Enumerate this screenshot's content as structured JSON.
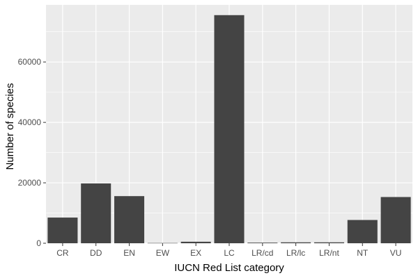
{
  "chart_data": {
    "type": "bar",
    "title": "",
    "xlabel": "IUCN Red List category",
    "ylabel": "Number of species",
    "categories": [
      "CR",
      "DD",
      "EN",
      "EW",
      "EX",
      "LC",
      "LR/cd",
      "LR/lc",
      "LR/nt",
      "NT",
      "VU"
    ],
    "values": [
      8500,
      19800,
      15600,
      80,
      500,
      75500,
      200,
      300,
      300,
      7700,
      15300
    ],
    "ylim": [
      0,
      78900
    ],
    "yticks": [
      0,
      20000,
      40000,
      60000
    ],
    "ytick_labels": [
      "0",
      "20000",
      "40000",
      "60000"
    ],
    "grid": true,
    "legend": "none",
    "colors": {
      "panel": "#ebebeb",
      "grid_major": "#ffffff",
      "bar": "#444444",
      "tick_text": "#4d4d4d"
    }
  }
}
